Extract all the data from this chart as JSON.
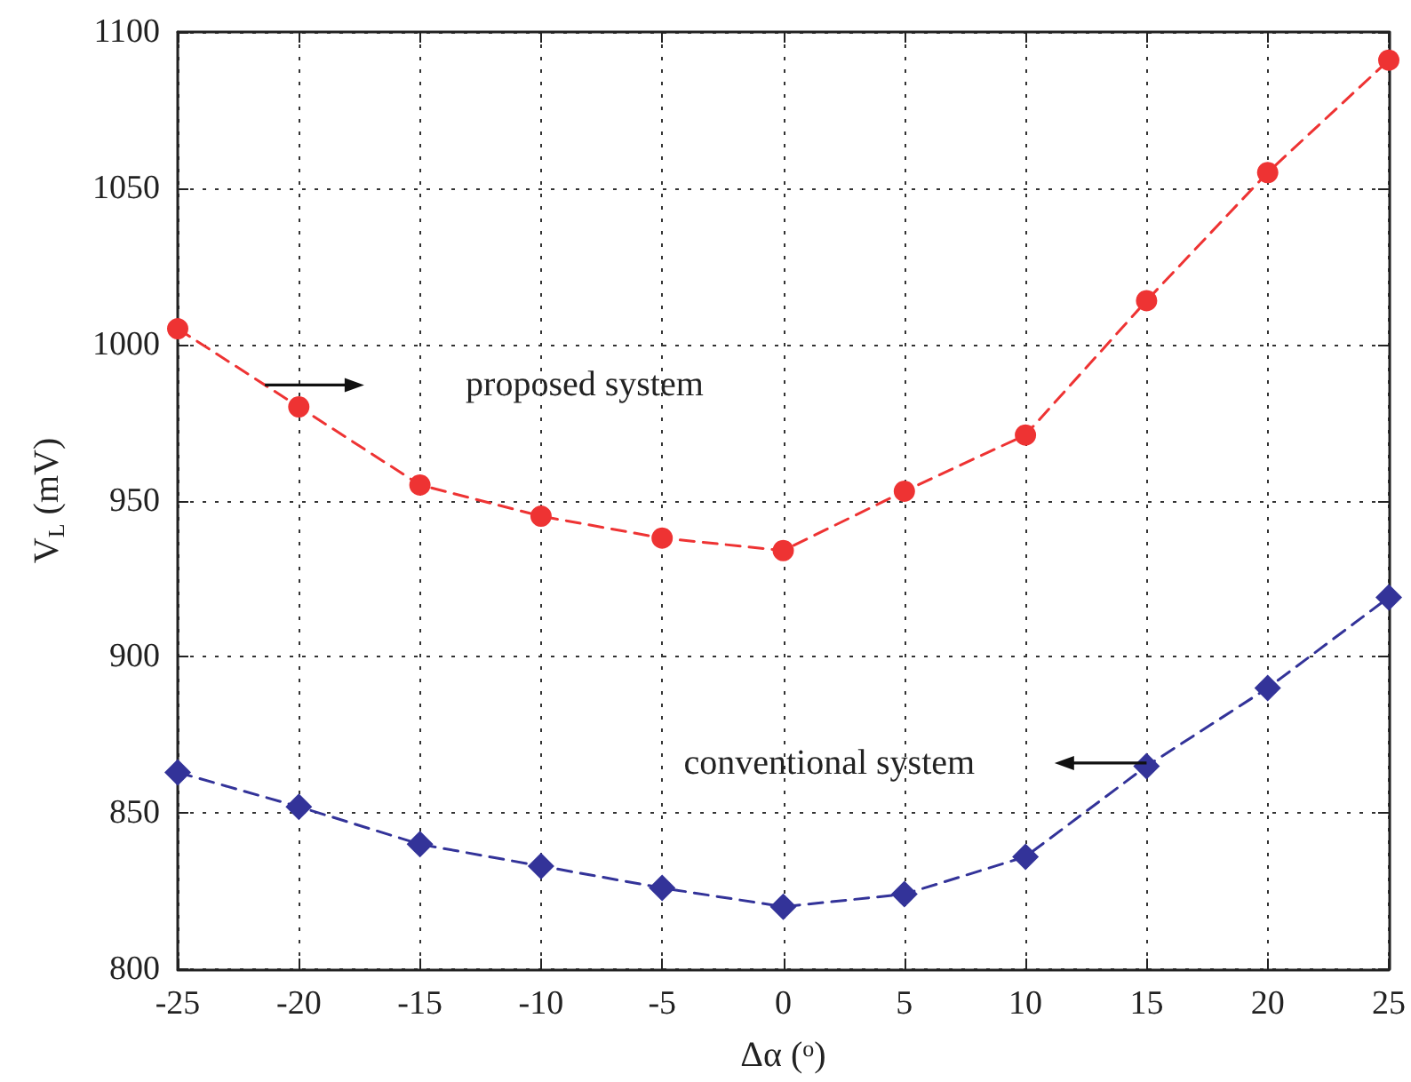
{
  "chart_data": {
    "type": "line",
    "xlabel": "Δα ($^{o}$)",
    "ylabel": "V$_{L}$ (mV)",
    "x": [
      -25,
      -20,
      -15,
      -10,
      -5,
      0,
      5,
      10,
      15,
      20,
      25
    ],
    "series": [
      {
        "color": "#ee3333",
        "marker": "circle",
        "values": [
          1005,
          980,
          955,
          945,
          938,
          934,
          953,
          971,
          1014,
          1055,
          1091
        ]
      },
      {
        "color": "#333399",
        "marker": "diamond",
        "values": [
          863,
          852,
          840,
          833,
          826,
          820,
          824,
          836,
          865,
          890,
          919
        ]
      }
    ],
    "annotations": [
      "proposed system",
      "conventional system"
    ],
    "xlim": [
      -25,
      25
    ],
    "xticks": [
      -25,
      -20,
      -15,
      -10,
      -5,
      0,
      5,
      10,
      15,
      20,
      25
    ],
    "ylim": [
      800,
      1100
    ],
    "yticks": [
      800,
      850,
      900,
      950,
      1000,
      1050,
      1100
    ],
    "grid": true,
    "line_style": "dashed"
  }
}
